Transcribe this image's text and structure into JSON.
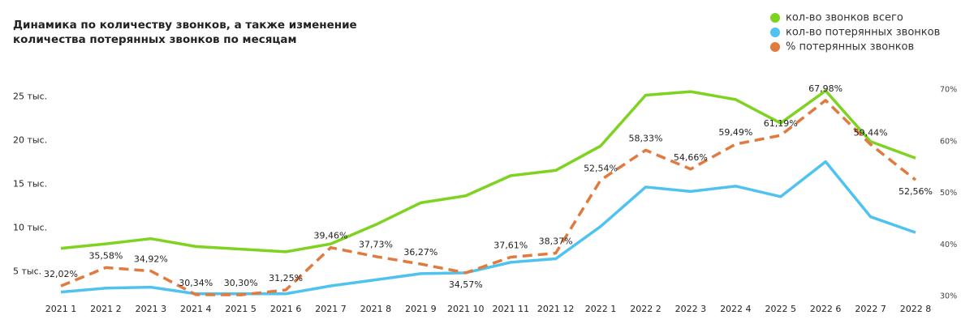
{
  "chart_data": {
    "type": "line",
    "title": "Динамика по количеству звонков, а также изменение количества потерянных звонков по месяцам",
    "categories": [
      "2021 1",
      "2021 2",
      "2021 3",
      "2021 4",
      "2021 5",
      "2021 6",
      "2021 7",
      "2021 8",
      "2021 9",
      "2021 10",
      "2021 11",
      "2021 12",
      "2022 1",
      "2022 2",
      "2022 3",
      "2022 4",
      "2022 5",
      "2022 6",
      "2022 7",
      "2022 8"
    ],
    "series": [
      {
        "name": "кол-во звонков всего",
        "color": "#7ed321",
        "values": [
          7700,
          8200,
          8800,
          7900,
          7600,
          7300,
          8200,
          10400,
          12900,
          13700,
          16000,
          16600,
          19400,
          25200,
          25600,
          24700,
          22000,
          25700,
          19900,
          18000
        ]
      },
      {
        "name": "кол-во потерянных звонков",
        "color": "#4fc3f0",
        "values": [
          2700,
          3150,
          3250,
          2500,
          2500,
          2500,
          3400,
          4100,
          4800,
          4900,
          6100,
          6500,
          10200,
          14700,
          14200,
          14800,
          13600,
          17600,
          11300,
          9500
        ]
      },
      {
        "name": "% потерянных звонков",
        "color": "#e07a3e",
        "axis": "y2",
        "dashed": true,
        "values": [
          32.02,
          35.58,
          34.92,
          30.34,
          30.3,
          31.25,
          39.46,
          37.73,
          36.27,
          34.57,
          37.61,
          38.37,
          52.54,
          58.33,
          54.66,
          59.49,
          61.19,
          67.98,
          59.44,
          52.56
        ],
        "value_labels": [
          "32,02%",
          "35,58%",
          "34,92%",
          "30,34%",
          "30,30%",
          "31,25%",
          "39,46%",
          "37,73%",
          "36,27%",
          "34,57%",
          "37,61%",
          "38,37%",
          "52,54%",
          "58,33%",
          "54,66%",
          "59,49%",
          "61,19%",
          "67,98%",
          "59,44%",
          "52,56%"
        ]
      }
    ],
    "ylim": [
      2200,
      25800
    ],
    "yticks": [
      {
        "value": 5000,
        "label": "5 тыс."
      },
      {
        "value": 10000,
        "label": "10 тыс."
      },
      {
        "value": 15000,
        "label": "15 тыс."
      },
      {
        "value": 20000,
        "label": "20 тыс."
      },
      {
        "value": 25000,
        "label": "25 тыс."
      }
    ],
    "y2lim": [
      30,
      70
    ],
    "y2ticks": [
      {
        "value": 30,
        "label": "30%"
      },
      {
        "value": 40,
        "label": "40%"
      },
      {
        "value": 50,
        "label": "50%"
      },
      {
        "value": 60,
        "label": "60%"
      },
      {
        "value": 70,
        "label": "70%"
      }
    ],
    "legend": "top-right"
  }
}
